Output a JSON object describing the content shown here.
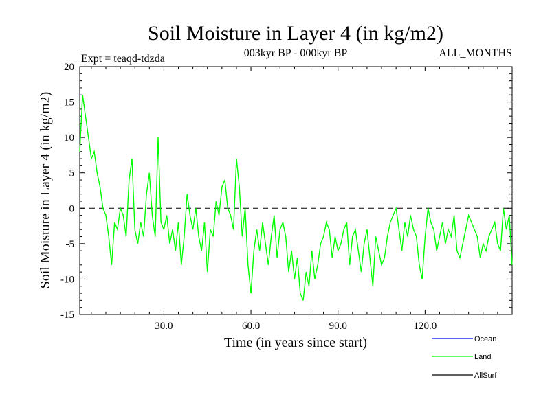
{
  "chart_data": {
    "type": "line",
    "title": "Soil Moisture in Layer 4 (in kg/m2)",
    "subtitle_left": "Expt = teaqd-tdzda",
    "subtitle_center": "003kyr BP - 000kyr BP",
    "subtitle_right": "ALL_MONTHS",
    "xlabel": "Time (in years since start)",
    "ylabel": "Soil Moisture in Layer 4 (in kg/m2)",
    "xlim": [
      1,
      150
    ],
    "ylim": [
      -15,
      20
    ],
    "x_ticks": [
      30,
      60,
      90,
      120
    ],
    "x_tick_labels": [
      "30.0",
      "60.0",
      "90.0",
      "120.0"
    ],
    "y_ticks": [
      -15,
      -10,
      -5,
      0,
      5,
      10,
      15,
      20
    ],
    "y_tick_labels": [
      "-15",
      "-10",
      "-5",
      "0",
      "5",
      "10",
      "15",
      "20"
    ],
    "reference_line": 0,
    "legend": [
      {
        "name": "Ocean",
        "color": "#0000ff"
      },
      {
        "name": "Land",
        "color": "#00ff00"
      },
      {
        "name": "AllSurf",
        "color": "#000000"
      }
    ],
    "series": [
      {
        "name": "Land",
        "color": "#00ff00",
        "x": [
          1,
          2,
          3,
          4,
          5,
          6,
          7,
          8,
          9,
          10,
          11,
          12,
          13,
          14,
          15,
          16,
          17,
          18,
          19,
          20,
          21,
          22,
          23,
          24,
          25,
          26,
          27,
          28,
          29,
          30,
          31,
          32,
          33,
          34,
          35,
          36,
          37,
          38,
          39,
          40,
          41,
          42,
          43,
          44,
          45,
          46,
          47,
          48,
          49,
          50,
          51,
          52,
          53,
          54,
          55,
          56,
          57,
          58,
          59,
          60,
          61,
          62,
          63,
          64,
          65,
          66,
          67,
          68,
          69,
          70,
          71,
          72,
          73,
          74,
          75,
          76,
          77,
          78,
          79,
          80,
          81,
          82,
          83,
          84,
          85,
          86,
          87,
          88,
          89,
          90,
          91,
          92,
          93,
          94,
          95,
          96,
          97,
          98,
          99,
          100,
          101,
          102,
          103,
          104,
          105,
          106,
          107,
          108,
          109,
          110,
          111,
          112,
          113,
          114,
          115,
          116,
          117,
          118,
          119,
          120,
          121,
          122,
          123,
          124,
          125,
          126,
          127,
          128,
          129,
          130,
          131,
          132,
          133,
          134,
          135,
          136,
          137,
          138,
          139,
          140,
          141,
          142,
          143,
          144,
          145,
          146,
          147,
          148,
          149,
          150
        ],
        "values": [
          8,
          16,
          13,
          10,
          7,
          8,
          5,
          3,
          0,
          -1,
          -4,
          -8,
          -2,
          -3,
          0,
          -1,
          -4,
          4,
          7,
          -3,
          -5,
          -2,
          -4,
          2,
          5,
          -1,
          -4,
          10,
          -2,
          -3,
          -1,
          -5,
          -3,
          -6,
          -2,
          -8,
          -4,
          2,
          -1,
          -3,
          0,
          -4,
          -6,
          -2,
          -9,
          -3,
          -4,
          1,
          -1,
          3,
          4,
          0,
          -1,
          -3,
          7,
          3,
          -4,
          0,
          -8,
          -12,
          -6,
          -3,
          -6,
          -2,
          -5,
          -8,
          -4,
          -1,
          -7,
          -3,
          -2,
          -4,
          -9,
          -6,
          -10,
          -7,
          -12,
          -13,
          -9,
          -11,
          -6,
          -10,
          -8,
          -5,
          -4,
          -2,
          -3,
          -7,
          -4,
          -6,
          -5,
          -3,
          -2,
          -8,
          -4,
          -3,
          -6,
          -9,
          -5,
          -3,
          -7,
          -11,
          -4,
          -6,
          -8,
          -7,
          -4,
          -2,
          -1,
          0,
          -3,
          -6,
          -2,
          -4,
          -1,
          -3,
          -4,
          -8,
          -10,
          -4,
          0,
          -2,
          -3,
          -6,
          -4,
          -2,
          -5,
          -3,
          -4,
          -1,
          -6,
          -7,
          -5,
          -3,
          -1,
          -2,
          -3,
          -4,
          -7,
          -5,
          -6,
          -4,
          -3,
          -2,
          -5,
          -6,
          0,
          -3,
          -1,
          -8
        ]
      }
    ]
  }
}
